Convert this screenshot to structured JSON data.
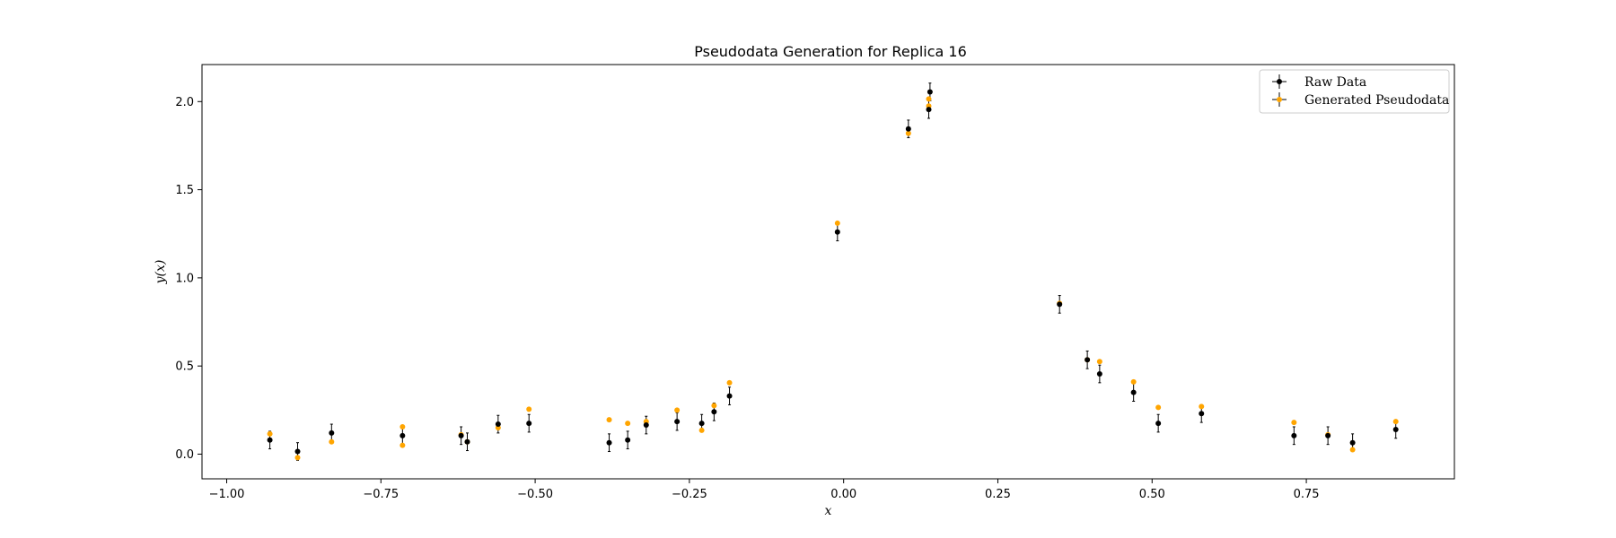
{
  "chart_data": {
    "type": "scatter",
    "title": "Pseudodata Generation for Replica 16",
    "xlabel": "x",
    "ylabel": "y(x)",
    "xlim": [
      -1.04,
      0.99
    ],
    "ylim": [
      -0.14,
      2.21
    ],
    "xticks": [
      -1.0,
      -0.75,
      -0.5,
      -0.25,
      0.0,
      0.25,
      0.5,
      0.75
    ],
    "xtick_labels": [
      "−1.00",
      "−0.75",
      "−0.50",
      "−0.25",
      "0.00",
      "0.25",
      "0.50",
      "0.75"
    ],
    "yticks": [
      0.0,
      0.5,
      1.0,
      1.5,
      2.0
    ],
    "ytick_labels": [
      "0.0",
      "0.5",
      "1.0",
      "1.5",
      "2.0"
    ],
    "grid": false,
    "legend_position": "top-right",
    "series": [
      {
        "name": "Raw Data",
        "color": "#000000",
        "x": [
          -0.93,
          -0.885,
          -0.83,
          -0.715,
          -0.62,
          -0.61,
          -0.56,
          -0.51,
          -0.38,
          -0.35,
          -0.32,
          -0.27,
          -0.23,
          -0.21,
          -0.185,
          -0.01,
          0.105,
          0.138,
          0.14,
          0.35,
          0.395,
          0.415,
          0.47,
          0.51,
          0.58,
          0.73,
          0.785,
          0.825,
          0.895
        ],
        "y": [
          0.08,
          0.015,
          0.12,
          0.105,
          0.105,
          0.07,
          0.17,
          0.175,
          0.065,
          0.08,
          0.165,
          0.185,
          0.175,
          0.24,
          0.33,
          1.26,
          1.845,
          1.955,
          2.055,
          0.85,
          0.535,
          0.455,
          0.35,
          0.175,
          0.23,
          0.105,
          0.105,
          0.065,
          0.14
        ],
        "yerr": [
          0.05,
          0.05,
          0.05,
          0.05,
          0.05,
          0.05,
          0.05,
          0.05,
          0.05,
          0.05,
          0.05,
          0.05,
          0.05,
          0.05,
          0.05,
          0.05,
          0.05,
          0.05,
          0.05,
          0.05,
          0.05,
          0.05,
          0.05,
          0.05,
          0.05,
          0.05,
          0.05,
          0.05,
          0.05
        ]
      },
      {
        "name": "Generated Pseudodata",
        "color": "#ffa500",
        "x": [
          -0.93,
          -0.885,
          -0.83,
          -0.715,
          -0.715,
          -0.62,
          -0.61,
          -0.56,
          -0.51,
          -0.38,
          -0.35,
          -0.32,
          -0.27,
          -0.23,
          -0.21,
          -0.185,
          -0.01,
          0.105,
          0.138,
          0.138,
          0.35,
          0.395,
          0.415,
          0.47,
          0.51,
          0.58,
          0.73,
          0.785,
          0.825,
          0.895
        ],
        "y": [
          0.115,
          -0.02,
          0.07,
          0.155,
          0.05,
          0.11,
          0.07,
          0.15,
          0.255,
          0.195,
          0.175,
          0.185,
          0.25,
          0.135,
          0.275,
          0.405,
          1.31,
          1.82,
          2.015,
          1.975,
          0.855,
          0.535,
          0.525,
          0.41,
          0.265,
          0.27,
          0.18,
          0.11,
          0.025,
          0.185
        ]
      }
    ]
  }
}
